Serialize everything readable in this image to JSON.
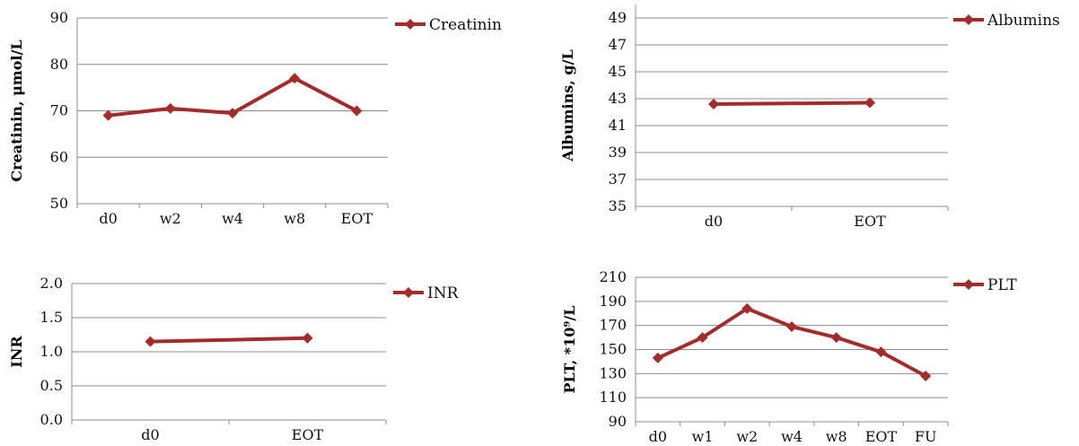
{
  "chart_data": [
    {
      "type": "line",
      "categories": [
        "d0",
        "w2",
        "w4",
        "w8",
        "EOT"
      ],
      "series": [
        {
          "name": "Creatinin",
          "values": [
            69,
            70.5,
            69.5,
            77,
            70
          ]
        }
      ],
      "ylabel": "Creatinin, μmol/L",
      "xlabel": "",
      "ylim": [
        50,
        90
      ],
      "yticks": [
        "50",
        "60",
        "70",
        "80",
        "90"
      ],
      "grid": "horizontal",
      "legend": "right",
      "color": "#A52A2A"
    },
    {
      "type": "line",
      "categories": [
        "d0",
        "EOT"
      ],
      "series": [
        {
          "name": "Albumins",
          "values": [
            42.6,
            42.7
          ]
        }
      ],
      "ylabel": "Albumins, g/L",
      "xlabel": "",
      "ylim": [
        35,
        50
      ],
      "yticks": [
        "35",
        "37",
        "39",
        "41",
        "43",
        "45",
        "47",
        "49"
      ],
      "grid": "horizontal",
      "legend": "right",
      "color": "#A52A2A"
    },
    {
      "type": "line",
      "categories": [
        "d0",
        "EOT"
      ],
      "series": [
        {
          "name": "INR",
          "values": [
            1.15,
            1.2
          ]
        }
      ],
      "ylabel": "INR",
      "xlabel": "",
      "ylim": [
        0,
        2
      ],
      "yticks": [
        "0.0",
        "0.5",
        "1.0",
        "1.5",
        "2.0"
      ],
      "grid": "horizontal",
      "legend": "right",
      "color": "#A52A2A"
    },
    {
      "type": "line",
      "categories": [
        "d0",
        "w1",
        "w2",
        "w4",
        "w8",
        "EOT",
        "FU"
      ],
      "series": [
        {
          "name": "PLT",
          "values": [
            143,
            160,
            184,
            169,
            160,
            148,
            128
          ]
        }
      ],
      "ylabel": "PLT, *10⁹/L",
      "xlabel": "",
      "ylim": [
        90,
        210
      ],
      "yticks": [
        "90",
        "110",
        "130",
        "150",
        "170",
        "190",
        "210"
      ],
      "grid": "horizontal",
      "legend": "right",
      "color": "#A52A2A"
    }
  ]
}
